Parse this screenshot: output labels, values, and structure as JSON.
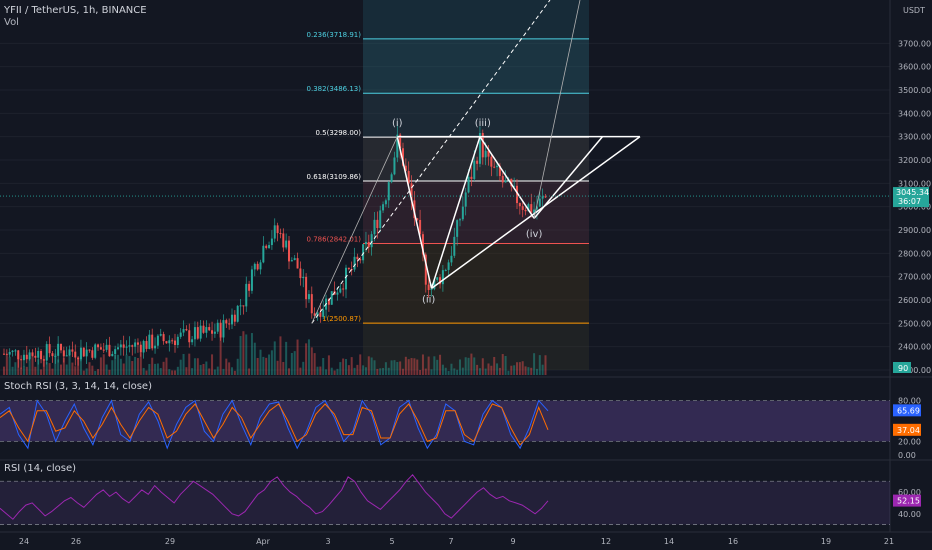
{
  "header": {
    "symbol_line": "YFII / TetherUS, 1h, BINANCE",
    "volume_label": "Vol",
    "stoch_label": "Stoch RSI (3, 3, 14, 14, close)",
    "rsi_label": "RSI (14, close)",
    "currency": "USDT"
  },
  "colors": {
    "background": "#131722",
    "up_candle": "#26a69a",
    "down_candle": "#ef5350",
    "stoch_k": "#2962ff",
    "stoch_d": "#ff6d00",
    "rsi_line": "#9c27b0",
    "fib_band": "#2962ff",
    "price_tag": "#26a69a"
  },
  "chart_data": [
    {
      "type": "candlestick",
      "title": "YFII / TetherUS, 1h, BINANCE",
      "y_axis_label": "USDT",
      "ylim": [
        2300,
        3800
      ],
      "y_ticks": [
        "3700.00",
        "3600.00",
        "3500.00",
        "3400.00",
        "3300.00",
        "3200.00",
        "3100.00",
        "3000.00",
        "2900.00",
        "2800.00",
        "2700.00",
        "2600.00",
        "2500.00",
        "2400.00",
        "2300.00"
      ],
      "x_ticks": [
        "24",
        "26",
        "29",
        "Apr",
        "3",
        "5",
        "7",
        "9",
        "12",
        "14",
        "16",
        "19",
        "21"
      ],
      "current_price": "3045.34",
      "countdown": "36:07",
      "volume_tag": "90",
      "price_path": [
        [
          0,
          2370
        ],
        [
          10,
          2372
        ],
        [
          20,
          2380
        ],
        [
          30,
          2385
        ],
        [
          40,
          2395
        ],
        [
          48,
          2410
        ],
        [
          56,
          2425
        ],
        [
          63,
          2445
        ],
        [
          70,
          2455
        ],
        [
          76,
          2475
        ],
        [
          80,
          2530
        ],
        [
          84,
          2600
        ],
        [
          87,
          2720
        ],
        [
          90,
          2800
        ],
        [
          92,
          2860
        ],
        [
          94,
          2880
        ],
        [
          96,
          2890
        ],
        [
          98,
          2860
        ],
        [
          100,
          2800
        ],
        [
          103,
          2740
        ],
        [
          106,
          2620
        ],
        [
          109,
          2545
        ],
        [
          112,
          2580
        ],
        [
          116,
          2640
        ],
        [
          120,
          2700
        ],
        [
          124,
          2760
        ],
        [
          128,
          2840
        ],
        [
          131,
          2950
        ],
        [
          134,
          3060
        ],
        [
          136,
          3180
        ],
        [
          138,
          3275
        ],
        [
          140,
          3200
        ],
        [
          142,
          3080
        ],
        [
          144,
          2960
        ],
        [
          146,
          2840
        ],
        [
          148,
          2700
        ],
        [
          150,
          2650
        ],
        [
          153,
          2700
        ],
        [
          156,
          2770
        ],
        [
          159,
          2900
        ],
        [
          162,
          3060
        ],
        [
          165,
          3180
        ],
        [
          167,
          3280
        ],
        [
          170,
          3180
        ],
        [
          174,
          3120
        ],
        [
          178,
          3060
        ],
        [
          182,
          3010
        ],
        [
          186,
          2990
        ],
        [
          190,
          3040
        ]
      ],
      "fib_levels": [
        {
          "label": "0.236(3718.91)",
          "value": 3718.91,
          "color": "#4dd0e1"
        },
        {
          "label": "0.382(3486.13)",
          "value": 3486.13,
          "color": "#4dd0e1"
        },
        {
          "label": "0.5(3298.00)",
          "value": 3298.0,
          "color": "#ffffff"
        },
        {
          "label": "0.618(3109.86)",
          "value": 3109.86,
          "color": "#ffffff"
        },
        {
          "label": "0.786(2842.01)",
          "value": 2842.01,
          "color": "#ef5350"
        },
        {
          "label": "1(2500.87)",
          "value": 2500.87,
          "color": "#ff9800"
        }
      ],
      "wave_labels": [
        {
          "text": "(i)",
          "x": 138,
          "y": 3345
        },
        {
          "text": "(iii)",
          "x": 168,
          "y": 3345
        },
        {
          "text": "(ii)",
          "x": 149,
          "y": 2590
        },
        {
          "text": "(iv)",
          "x": 186,
          "y": 2870
        }
      ],
      "wave_points": [
        [
          108,
          2500
        ],
        [
          138,
          3300
        ],
        [
          150,
          2650
        ],
        [
          167,
          3300
        ],
        [
          186,
          2950
        ],
        [
          210,
          3300
        ]
      ]
    },
    {
      "type": "line",
      "title": "Stoch RSI (3, 3, 14, 14, close)",
      "ylim": [
        0,
        100
      ],
      "y_ticks": [
        "80.00",
        "20.00",
        "0.00"
      ],
      "band": [
        20,
        80
      ],
      "series": [
        {
          "name": "K",
          "values": [
            60,
            70,
            30,
            10,
            80,
            60,
            20,
            50,
            75,
            40,
            15,
            55,
            80,
            30,
            20,
            60,
            78,
            50,
            10,
            45,
            70,
            80,
            35,
            20,
            60,
            80,
            45,
            15,
            55,
            75,
            78,
            40,
            10,
            35,
            70,
            80,
            55,
            20,
            35,
            80,
            60,
            15,
            25,
            70,
            80,
            40,
            10,
            30,
            75,
            65,
            20,
            15,
            60,
            80,
            70,
            30,
            10,
            40,
            80,
            65
          ]
        },
        {
          "name": "D",
          "values": [
            55,
            65,
            40,
            20,
            65,
            65,
            35,
            40,
            65,
            50,
            25,
            45,
            70,
            45,
            25,
            50,
            70,
            60,
            25,
            35,
            60,
            75,
            50,
            25,
            45,
            70,
            55,
            25,
            45,
            65,
            75,
            50,
            20,
            30,
            60,
            75,
            60,
            30,
            30,
            70,
            65,
            25,
            25,
            60,
            75,
            50,
            20,
            25,
            65,
            65,
            30,
            20,
            50,
            75,
            70,
            40,
            15,
            30,
            70,
            37
          ]
        }
      ],
      "current_k": "65.69",
      "current_d": "37.04"
    },
    {
      "type": "line",
      "title": "RSI (14, close)",
      "ylim": [
        25,
        85
      ],
      "y_ticks": [
        "60.00",
        "40.00"
      ],
      "band": [
        30,
        70
      ],
      "series": [
        {
          "name": "RSI",
          "values": [
            45,
            40,
            35,
            42,
            48,
            50,
            44,
            38,
            42,
            47,
            52,
            55,
            50,
            46,
            52,
            58,
            62,
            56,
            60,
            54,
            50,
            56,
            62,
            58,
            66,
            60,
            55,
            50,
            58,
            64,
            70,
            66,
            62,
            58,
            52,
            46,
            40,
            38,
            42,
            50,
            58,
            62,
            70,
            74,
            66,
            60,
            56,
            50,
            46,
            40,
            42,
            48,
            55,
            62,
            74,
            70,
            60,
            52,
            48,
            44,
            50,
            56,
            62,
            70,
            76,
            68,
            60,
            54,
            48,
            40,
            36,
            42,
            48,
            54,
            60,
            64,
            58,
            54,
            56,
            52,
            50,
            48,
            44,
            40,
            45,
            52
          ]
        }
      ],
      "current": "52.15"
    }
  ]
}
